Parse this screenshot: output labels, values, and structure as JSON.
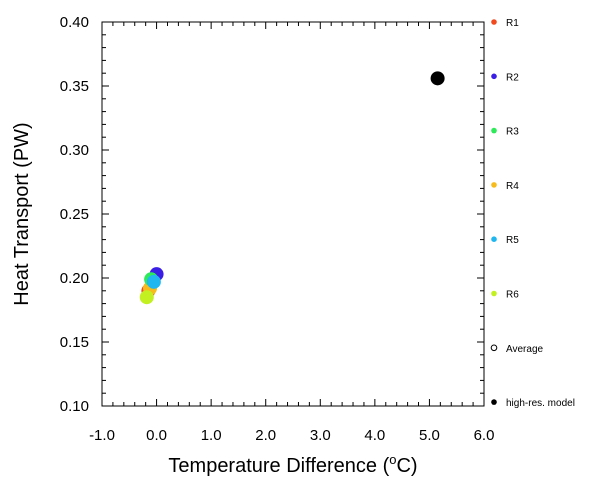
{
  "chart_data": {
    "type": "scatter",
    "xlabel": "Temperature Difference (",
    "xlabel_unit_sup": "o",
    "xlabel_unit_tail": "C)",
    "ylabel": "Heat Transport (PW)",
    "xlim": [
      -1.0,
      6.0
    ],
    "ylim": [
      0.1,
      0.4
    ],
    "x_ticks": [
      -1.0,
      0.0,
      1.0,
      2.0,
      3.0,
      4.0,
      5.0,
      6.0
    ],
    "x_tick_labels": [
      "-1.0",
      "0.0",
      "1.0",
      "2.0",
      "3.0",
      "4.0",
      "5.0",
      "6.0"
    ],
    "y_ticks": [
      0.1,
      0.15,
      0.2,
      0.25,
      0.3,
      0.35,
      0.4
    ],
    "y_tick_labels": [
      "0.10",
      "0.15",
      "0.20",
      "0.25",
      "0.30",
      "0.35",
      "0.40"
    ],
    "grid": false,
    "legend_position": "right",
    "series": [
      {
        "name": "R1",
        "color": "#f04a1e",
        "points": [
          {
            "x": -0.15,
            "y": 0.19
          }
        ]
      },
      {
        "name": "R2",
        "color": "#3a1ee6",
        "points": [
          {
            "x": 0.0,
            "y": 0.203
          }
        ]
      },
      {
        "name": "R3",
        "color": "#2eea5a",
        "points": [
          {
            "x": -0.1,
            "y": 0.199
          }
        ]
      },
      {
        "name": "R4",
        "color": "#f6bb1c",
        "points": [
          {
            "x": -0.12,
            "y": 0.192
          }
        ]
      },
      {
        "name": "R5",
        "color": "#20b6ef",
        "points": [
          {
            "x": -0.05,
            "y": 0.197
          }
        ]
      },
      {
        "name": "R6",
        "color": "#c2f020",
        "points": [
          {
            "x": -0.18,
            "y": 0.185
          }
        ]
      },
      {
        "name": "Average",
        "color": "#000000",
        "hollow": true,
        "points": []
      },
      {
        "name": "high-res. model",
        "color": "#000000",
        "points": [
          {
            "x": 5.15,
            "y": 0.356
          }
        ]
      }
    ]
  }
}
